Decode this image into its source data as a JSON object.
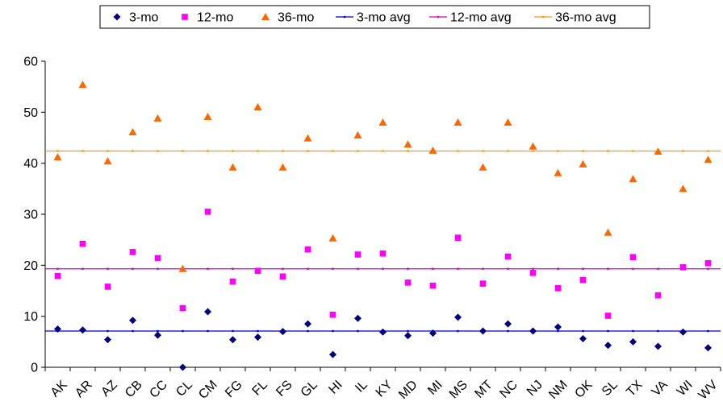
{
  "chart_data": {
    "type": "scatter",
    "categories": [
      "AK",
      "AR",
      "AZ",
      "CB",
      "CC",
      "CL",
      "CM",
      "FG",
      "FL",
      "FS",
      "GL",
      "HI",
      "IL",
      "KY",
      "MD",
      "MI",
      "MS",
      "MT",
      "NC",
      "NJ",
      "NM",
      "OK",
      "SL",
      "TX",
      "VA",
      "WI",
      "WV"
    ],
    "ylim": [
      0,
      60
    ],
    "yticks": [
      0,
      10,
      20,
      30,
      40,
      50,
      60
    ],
    "grid": false,
    "legend_position": "top",
    "series": [
      {
        "name": "3-mo",
        "marker": "diamond",
        "color": "#000080",
        "values": [
          7.5,
          7.3,
          5.4,
          9.2,
          6.3,
          0.0,
          10.9,
          5.4,
          5.9,
          7.0,
          8.5,
          2.5,
          9.6,
          6.9,
          6.2,
          6.7,
          9.8,
          7.1,
          8.5,
          7.1,
          7.9,
          5.6,
          4.3,
          5.0,
          4.1,
          6.9,
          3.8
        ]
      },
      {
        "name": "12-mo",
        "marker": "square",
        "color": "#FF00FF",
        "values": [
          17.9,
          24.2,
          15.8,
          22.6,
          21.4,
          11.6,
          30.5,
          16.8,
          18.9,
          17.8,
          23.1,
          10.3,
          22.1,
          22.3,
          16.6,
          16.0,
          25.4,
          16.4,
          21.7,
          18.5,
          15.5,
          17.1,
          10.1,
          21.6,
          14.1,
          19.6,
          20.4
        ]
      },
      {
        "name": "36-mo",
        "marker": "triangle",
        "color": "#FF6600",
        "values": [
          41.2,
          55.4,
          40.4,
          46.1,
          48.8,
          19.3,
          49.1,
          39.2,
          51.0,
          39.2,
          44.9,
          25.3,
          45.5,
          48.0,
          43.7,
          42.5,
          48.0,
          39.2,
          48.0,
          43.3,
          38.1,
          39.8,
          26.4,
          36.9,
          42.3,
          35.0,
          40.7
        ]
      },
      {
        "name": "3-mo avg",
        "marker": "line",
        "color": "#0000CC",
        "value": 7.1
      },
      {
        "name": "12-mo avg",
        "marker": "line",
        "color": "#CC00CC",
        "value": 19.3
      },
      {
        "name": "36-mo avg",
        "marker": "line",
        "color": "#FF9900",
        "value": 42.4
      }
    ]
  }
}
